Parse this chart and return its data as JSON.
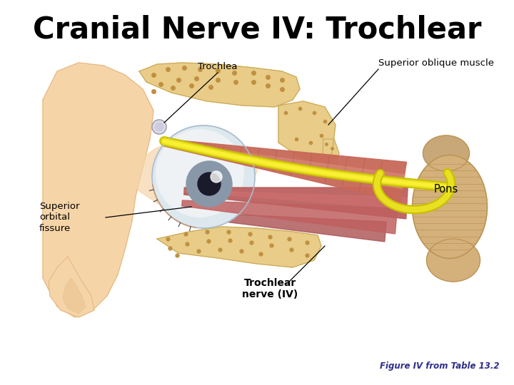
{
  "title": "Cranial Nerve IV: Trochlear",
  "title_fontsize": 30,
  "caption": "Figure IV from Table 13.2",
  "caption_color": "#2e2e8b",
  "caption_fontsize": 8.5,
  "bg_color": "#ffffff",
  "skin_color": "#f5d5a8",
  "skin_dark": "#e8b882",
  "bone_color": "#e8cc88",
  "bone_dark": "#c8a855",
  "bone_spot": "#c09040",
  "muscle_color": "#c86858",
  "muscle_light": "#d88878",
  "nerve_color": "#e8e020",
  "nerve_dark": "#c8c000",
  "pons_color": "#d4b07a",
  "pons_dark": "#b89050",
  "eye_white": "#dde8ee",
  "eye_iris": "#8898a8",
  "labels": {
    "trochlea": "Trochlea",
    "superior_oblique": "Superior oblique muscle",
    "superior_orbital": "Superior\norbital\nfissure",
    "trochlear_nerve": "Trochlear\nnerve (IV)",
    "pons": "Pons"
  }
}
